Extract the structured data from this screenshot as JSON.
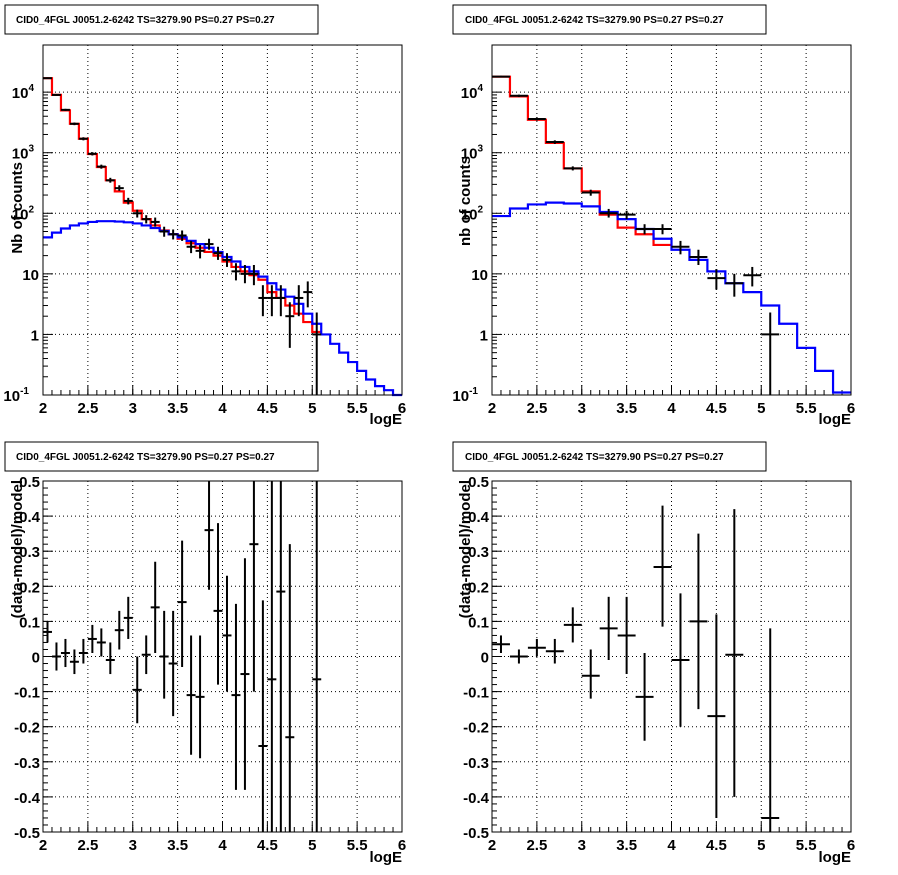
{
  "panels": [
    {
      "title": "CID0_4FGL J0051.2-6242 TS=3279.90 PS=0.27 PS=0.27",
      "xlabel": "logE",
      "ylabel": "Nb of counts"
    },
    {
      "title": "CID0_4FGL J0051.2-6242 TS=3279.90 PS=0.27 PS=0.27",
      "xlabel": "logE",
      "ylabel": "nb of counts"
    },
    {
      "title": "CID0_4FGL J0051.2-6242 TS=3279.90 PS=0.27 PS=0.27",
      "xlabel": "logE",
      "ylabel": "(data-model)/model"
    },
    {
      "title": "CID0_4FGL J0051.2-6242 TS=3279.90 PS=0.27 PS=0.27",
      "xlabel": "logE",
      "ylabel": "(data-model)/model"
    }
  ],
  "colors": {
    "total_model": "#ff0000",
    "source_model": "#0000ff",
    "data": "#000000"
  },
  "chart_data": [
    {
      "type": "line",
      "title": "CID0_4FGL J0051.2-6242 TS=3279.90 PS=0.27 PS=0.27",
      "xlabel": "logE",
      "ylabel": "Nb of counts",
      "xlim": [
        2,
        6
      ],
      "ylim": [
        0.1,
        60000
      ],
      "yscale": "log",
      "grid": true,
      "x_ticks": [
        "2",
        "2.5",
        "3",
        "3.5",
        "4",
        "4.5",
        "5",
        "5.5",
        "6"
      ],
      "y_ticks": [
        "10^-1",
        "1",
        "10",
        "10^2",
        "10^3",
        "10^4"
      ],
      "series": [
        {
          "style": "step",
          "color": "#ff0000",
          "edges": [
            2.0,
            2.1,
            2.2,
            2.3,
            2.4,
            2.5,
            2.6,
            2.7,
            2.8,
            2.9,
            3.0,
            3.1,
            3.2,
            3.3,
            3.4,
            3.5,
            3.6,
            3.7,
            3.8,
            3.9,
            4.0,
            4.1,
            4.2,
            4.3,
            4.4,
            4.5,
            4.6,
            4.7,
            4.8,
            4.9,
            5.0,
            5.1
          ],
          "values": [
            17000,
            9000,
            5000,
            3000,
            1700,
            950,
            580,
            350,
            230,
            150,
            110,
            80,
            63,
            52,
            45,
            38,
            32,
            27,
            23,
            20,
            16,
            13,
            11,
            9.5,
            8,
            5,
            4,
            3,
            2.2,
            1.6,
            1.1
          ]
        },
        {
          "style": "step",
          "color": "#0000ff",
          "edges": [
            2.0,
            2.1,
            2.2,
            2.3,
            2.4,
            2.5,
            2.6,
            2.7,
            2.8,
            2.9,
            3.0,
            3.1,
            3.2,
            3.3,
            3.4,
            3.5,
            3.6,
            3.7,
            3.8,
            3.9,
            4.0,
            4.1,
            4.2,
            4.3,
            4.4,
            4.5,
            4.6,
            4.7,
            4.8,
            4.9,
            5.0,
            5.1,
            5.2,
            5.3,
            5.4,
            5.5,
            5.6,
            5.7,
            5.8,
            5.9,
            6.0
          ],
          "values": [
            40,
            48,
            56,
            63,
            68,
            72,
            74,
            74,
            73,
            71,
            68,
            63,
            57,
            51,
            45,
            40,
            35,
            31,
            27,
            23,
            19,
            16,
            13,
            11,
            9,
            7,
            5.5,
            4.2,
            3.2,
            2.2,
            1.5,
            1.0,
            0.7,
            0.5,
            0.35,
            0.25,
            0.18,
            0.14,
            0.12,
            0.1
          ]
        },
        {
          "style": "errorbars",
          "color": "#000000",
          "half_width": 0.05,
          "points": [
            {
              "x": 2.05,
              "y": 17000,
              "lo": 16500,
              "hi": 17500
            },
            {
              "x": 2.15,
              "y": 9000,
              "lo": 8700,
              "hi": 9300
            },
            {
              "x": 2.25,
              "y": 5100,
              "lo": 4900,
              "hi": 5300
            },
            {
              "x": 2.35,
              "y": 3000,
              "lo": 2850,
              "hi": 3150
            },
            {
              "x": 2.45,
              "y": 1700,
              "lo": 1600,
              "hi": 1800
            },
            {
              "x": 2.55,
              "y": 960,
              "lo": 900,
              "hi": 1020
            },
            {
              "x": 2.65,
              "y": 590,
              "lo": 545,
              "hi": 635
            },
            {
              "x": 2.75,
              "y": 350,
              "lo": 320,
              "hi": 385
            },
            {
              "x": 2.85,
              "y": 260,
              "lo": 235,
              "hi": 290
            },
            {
              "x": 2.95,
              "y": 160,
              "lo": 140,
              "hi": 180
            },
            {
              "x": 3.05,
              "y": 100,
              "lo": 85,
              "hi": 115
            },
            {
              "x": 3.15,
              "y": 80,
              "lo": 68,
              "hi": 93
            },
            {
              "x": 3.25,
              "y": 72,
              "lo": 60,
              "hi": 85
            },
            {
              "x": 3.35,
              "y": 50,
              "lo": 41,
              "hi": 60
            },
            {
              "x": 3.45,
              "y": 45,
              "lo": 37,
              "hi": 54
            },
            {
              "x": 3.55,
              "y": 43,
              "lo": 35,
              "hi": 52
            },
            {
              "x": 3.65,
              "y": 28,
              "lo": 22,
              "hi": 35
            },
            {
              "x": 3.75,
              "y": 24,
              "lo": 18,
              "hi": 30
            },
            {
              "x": 3.85,
              "y": 31,
              "lo": 25,
              "hi": 38
            },
            {
              "x": 3.95,
              "y": 22,
              "lo": 17,
              "hi": 28
            },
            {
              "x": 4.05,
              "y": 17,
              "lo": 13,
              "hi": 22
            },
            {
              "x": 4.15,
              "y": 11,
              "lo": 7.8,
              "hi": 15
            },
            {
              "x": 4.25,
              "y": 10,
              "lo": 7,
              "hi": 14
            },
            {
              "x": 4.35,
              "y": 10,
              "lo": 6.5,
              "hi": 14
            },
            {
              "x": 4.45,
              "y": 4,
              "lo": 2,
              "hi": 6.5
            },
            {
              "x": 4.55,
              "y": 4,
              "lo": 2,
              "hi": 6.5
            },
            {
              "x": 4.65,
              "y": 4,
              "lo": 2,
              "hi": 6.5
            },
            {
              "x": 4.75,
              "y": 2,
              "lo": 0.6,
              "hi": 3.4
            },
            {
              "x": 4.85,
              "y": 4,
              "lo": 2,
              "hi": 6.5
            },
            {
              "x": 4.95,
              "y": 5,
              "lo": 2.8,
              "hi": 7.5
            },
            {
              "x": 5.05,
              "y": 1,
              "lo": 0.1,
              "hi": 2.3
            }
          ]
        }
      ]
    },
    {
      "type": "line",
      "title": "CID0_4FGL J0051.2-6242 TS=3279.90 PS=0.27 PS=0.27",
      "xlabel": "logE",
      "ylabel": "nb of counts",
      "xlim": [
        2,
        6
      ],
      "ylim": [
        0.1,
        60000
      ],
      "yscale": "log",
      "grid": true,
      "x_ticks": [
        "2",
        "2.5",
        "3",
        "3.5",
        "4",
        "4.5",
        "5",
        "5.5",
        "6"
      ],
      "y_ticks": [
        "10^-1",
        "1",
        "10",
        "10^2",
        "10^3",
        "10^4"
      ],
      "series": [
        {
          "style": "step",
          "color": "#ff0000",
          "edges": [
            2.0,
            2.2,
            2.4,
            2.6,
            2.8,
            3.0,
            3.2,
            3.4,
            3.6,
            3.8,
            4.0
          ],
          "values": [
            18000,
            8500,
            3500,
            1450,
            550,
            230,
            95,
            58,
            45,
            30
          ]
        },
        {
          "style": "step",
          "color": "#0000ff",
          "edges": [
            2.0,
            2.2,
            2.4,
            2.6,
            2.8,
            3.0,
            3.2,
            3.4,
            3.6,
            3.8,
            4.0,
            4.2,
            4.4,
            4.6,
            4.8,
            5.0,
            5.2,
            5.4,
            5.6,
            5.8,
            6.0
          ],
          "values": [
            90,
            120,
            140,
            150,
            145,
            130,
            105,
            80,
            55,
            38,
            25,
            17,
            11,
            7,
            5,
            3,
            1.5,
            0.6,
            0.25,
            0.11
          ]
        },
        {
          "style": "errorbars",
          "color": "#000000",
          "half_width": 0.1,
          "points": [
            {
              "x": 2.1,
              "y": 18000,
              "lo": 17500,
              "hi": 18600
            },
            {
              "x": 2.3,
              "y": 8700,
              "lo": 8300,
              "hi": 9100
            },
            {
              "x": 2.5,
              "y": 3600,
              "lo": 3400,
              "hi": 3800
            },
            {
              "x": 2.7,
              "y": 1500,
              "lo": 1400,
              "hi": 1600
            },
            {
              "x": 2.9,
              "y": 550,
              "lo": 510,
              "hi": 595
            },
            {
              "x": 3.1,
              "y": 220,
              "lo": 195,
              "hi": 245
            },
            {
              "x": 3.3,
              "y": 100,
              "lo": 85,
              "hi": 118
            },
            {
              "x": 3.5,
              "y": 95,
              "lo": 80,
              "hi": 110
            },
            {
              "x": 3.7,
              "y": 55,
              "lo": 45,
              "hi": 66
            },
            {
              "x": 3.9,
              "y": 55,
              "lo": 45,
              "hi": 66
            },
            {
              "x": 4.1,
              "y": 28,
              "lo": 21,
              "hi": 35
            },
            {
              "x": 4.3,
              "y": 19,
              "lo": 14,
              "hi": 25
            },
            {
              "x": 4.5,
              "y": 8.5,
              "lo": 5.5,
              "hi": 12
            },
            {
              "x": 4.7,
              "y": 7,
              "lo": 4.2,
              "hi": 10
            },
            {
              "x": 4.9,
              "y": 9.5,
              "lo": 6.2,
              "hi": 13
            },
            {
              "x": 5.1,
              "y": 1,
              "lo": 0.1,
              "hi": 2.3
            }
          ]
        }
      ]
    },
    {
      "type": "scatter",
      "title": "CID0_4FGL J0051.2-6242 TS=3279.90 PS=0.27 PS=0.27",
      "xlabel": "logE",
      "ylabel": "(data-model)/model",
      "xlim": [
        2,
        6
      ],
      "ylim": [
        -0.5,
        0.5
      ],
      "grid": true,
      "x_ticks": [
        "2",
        "2.5",
        "3",
        "3.5",
        "4",
        "4.5",
        "5",
        "5.5",
        "6"
      ],
      "y_ticks": [
        "-0.5",
        "-0.4",
        "-0.3",
        "-0.2",
        "-0.1",
        "0",
        "0.1",
        "0.2",
        "0.3",
        "0.4",
        "0.5"
      ],
      "series": [
        {
          "style": "errorbars",
          "color": "#000000",
          "half_width": 0.05,
          "points": [
            {
              "x": 2.05,
              "y": 0.07,
              "lo": 0.04,
              "hi": 0.1
            },
            {
              "x": 2.15,
              "y": 0.0,
              "lo": -0.04,
              "hi": 0.04
            },
            {
              "x": 2.25,
              "y": 0.01,
              "lo": -0.03,
              "hi": 0.05
            },
            {
              "x": 2.35,
              "y": -0.015,
              "lo": -0.05,
              "hi": 0.02
            },
            {
              "x": 2.45,
              "y": 0.01,
              "lo": -0.02,
              "hi": 0.05
            },
            {
              "x": 2.55,
              "y": 0.05,
              "lo": 0.01,
              "hi": 0.09
            },
            {
              "x": 2.65,
              "y": 0.04,
              "lo": 0.0,
              "hi": 0.08
            },
            {
              "x": 2.75,
              "y": -0.01,
              "lo": -0.05,
              "hi": 0.04
            },
            {
              "x": 2.85,
              "y": 0.075,
              "lo": 0.02,
              "hi": 0.13
            },
            {
              "x": 2.95,
              "y": 0.11,
              "lo": 0.05,
              "hi": 0.17
            },
            {
              "x": 3.05,
              "y": -0.095,
              "lo": -0.19,
              "hi": 0.0
            },
            {
              "x": 3.15,
              "y": 0.005,
              "lo": -0.05,
              "hi": 0.06
            },
            {
              "x": 3.25,
              "y": 0.14,
              "lo": 0.01,
              "hi": 0.27
            },
            {
              "x": 3.35,
              "y": 0.0,
              "lo": -0.12,
              "hi": 0.13
            },
            {
              "x": 3.45,
              "y": -0.02,
              "lo": -0.17,
              "hi": 0.13
            },
            {
              "x": 3.55,
              "y": 0.155,
              "lo": -0.03,
              "hi": 0.33
            },
            {
              "x": 3.65,
              "y": -0.11,
              "lo": -0.28,
              "hi": 0.06
            },
            {
              "x": 3.75,
              "y": -0.115,
              "lo": -0.29,
              "hi": 0.06
            },
            {
              "x": 3.85,
              "y": 0.36,
              "lo": 0.19,
              "hi": 0.5
            },
            {
              "x": 3.95,
              "y": 0.13,
              "lo": -0.08,
              "hi": 0.38
            },
            {
              "x": 4.05,
              "y": 0.06,
              "lo": -0.1,
              "hi": 0.23
            },
            {
              "x": 4.15,
              "y": -0.11,
              "lo": -0.38,
              "hi": 0.15
            },
            {
              "x": 4.25,
              "y": -0.05,
              "lo": -0.38,
              "hi": 0.28
            },
            {
              "x": 4.35,
              "y": 0.32,
              "lo": -0.1,
              "hi": 0.5
            },
            {
              "x": 4.45,
              "y": -0.255,
              "lo": -0.5,
              "hi": 0.16
            },
            {
              "x": 4.55,
              "y": -0.065,
              "lo": -0.5,
              "hi": 0.5
            },
            {
              "x": 4.65,
              "y": 0.185,
              "lo": -0.5,
              "hi": 0.5
            },
            {
              "x": 4.75,
              "y": -0.23,
              "lo": -0.5,
              "hi": 0.32
            },
            {
              "x": 5.05,
              "y": -0.065,
              "lo": -0.5,
              "hi": 0.5
            }
          ]
        }
      ]
    },
    {
      "type": "scatter",
      "title": "CID0_4FGL J0051.2-6242 TS=3279.90 PS=0.27 PS=0.27",
      "xlabel": "logE",
      "ylabel": "(data-model)/model",
      "xlim": [
        2,
        6
      ],
      "ylim": [
        -0.5,
        0.5
      ],
      "grid": true,
      "x_ticks": [
        "2",
        "2.5",
        "3",
        "3.5",
        "4",
        "4.5",
        "5",
        "5.5",
        "6"
      ],
      "y_ticks": [
        "-0.5",
        "-0.4",
        "-0.3",
        "-0.2",
        "-0.1",
        "0",
        "0.1",
        "0.2",
        "0.3",
        "0.4",
        "0.5"
      ],
      "series": [
        {
          "style": "errorbars",
          "color": "#000000",
          "half_width": 0.1,
          "points": [
            {
              "x": 2.1,
              "y": 0.035,
              "lo": 0.01,
              "hi": 0.06
            },
            {
              "x": 2.3,
              "y": 0.0,
              "lo": -0.02,
              "hi": 0.02
            },
            {
              "x": 2.5,
              "y": 0.025,
              "lo": 0.0,
              "hi": 0.05
            },
            {
              "x": 2.7,
              "y": 0.015,
              "lo": -0.02,
              "hi": 0.05
            },
            {
              "x": 2.9,
              "y": 0.09,
              "lo": 0.04,
              "hi": 0.14
            },
            {
              "x": 3.1,
              "y": -0.055,
              "lo": -0.12,
              "hi": 0.02
            },
            {
              "x": 3.3,
              "y": 0.08,
              "lo": -0.01,
              "hi": 0.17
            },
            {
              "x": 3.5,
              "y": 0.06,
              "lo": -0.05,
              "hi": 0.17
            },
            {
              "x": 3.7,
              "y": -0.115,
              "lo": -0.24,
              "hi": 0.01
            },
            {
              "x": 3.9,
              "y": 0.255,
              "lo": 0.085,
              "hi": 0.43
            },
            {
              "x": 4.1,
              "y": -0.01,
              "lo": -0.2,
              "hi": 0.18
            },
            {
              "x": 4.3,
              "y": 0.1,
              "lo": -0.15,
              "hi": 0.35
            },
            {
              "x": 4.5,
              "y": -0.17,
              "lo": -0.46,
              "hi": 0.12
            },
            {
              "x": 4.7,
              "y": 0.005,
              "lo": -0.4,
              "hi": 0.42
            },
            {
              "x": 5.1,
              "y": -0.46,
              "lo": -0.5,
              "hi": 0.08
            }
          ]
        }
      ]
    }
  ]
}
